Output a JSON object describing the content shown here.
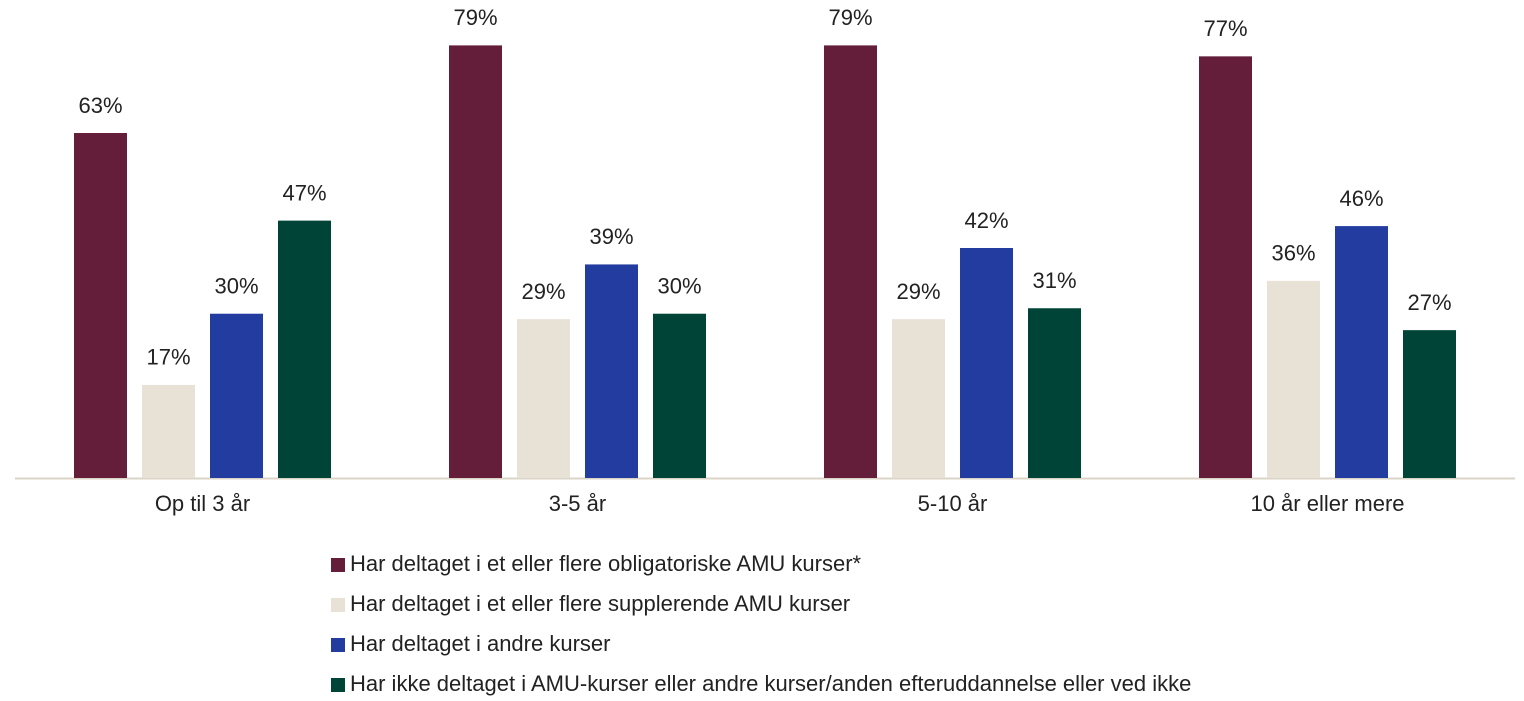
{
  "chart_data": {
    "type": "bar",
    "categories": [
      "Op til 3 år",
      "3-5 år",
      "5-10 år",
      "10 år eller mere"
    ],
    "series": [
      {
        "name": "Har deltaget i et eller flere obligatoriske AMU kurser*",
        "color": "#641e3a",
        "values": [
          63,
          79,
          79,
          77
        ],
        "value_labels": [
          "63%",
          "79%",
          "79%",
          "77%"
        ]
      },
      {
        "name": "Har deltaget i et eller flere supplerende AMU kurser",
        "color": "#e8e1d6",
        "values": [
          17,
          29,
          29,
          36
        ],
        "value_labels": [
          "17%",
          "29%",
          "29%",
          "36%"
        ]
      },
      {
        "name": "Har deltaget i andre kurser",
        "color": "#233c9f",
        "values": [
          30,
          39,
          42,
          46
        ],
        "value_labels": [
          "30%",
          "39%",
          "42%",
          "46%"
        ]
      },
      {
        "name": "Har ikke deltaget i AMU-kurser eller andre kurser/anden efteruddannelse eller ved ikke",
        "color": "#004438",
        "values": [
          47,
          30,
          31,
          27
        ],
        "value_labels": [
          "47%",
          "30%",
          "31%",
          "27%"
        ]
      }
    ],
    "legend": "bottom"
  }
}
